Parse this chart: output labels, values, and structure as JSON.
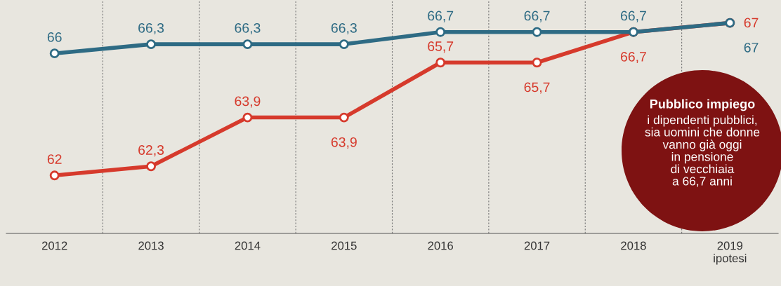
{
  "chart_data": {
    "type": "line",
    "categories": [
      "2012",
      "2013",
      "2014",
      "2015",
      "2016",
      "2017",
      "2018",
      "2019\nipotesi"
    ],
    "series": [
      {
        "color": "#d63a2c",
        "values": [
          62,
          62.3,
          63.9,
          63.9,
          65.7,
          65.7,
          66.7,
          67
        ],
        "value_labels": [
          "62",
          "62,3",
          "63,9",
          "63,9",
          "65,7",
          "65,7",
          "66,7",
          "67"
        ]
      },
      {
        "color": "#2e6b84",
        "values": [
          66,
          66.3,
          66.3,
          66.3,
          66.7,
          66.7,
          66.7,
          67
        ],
        "value_labels": [
          "66",
          "66,3",
          "66,3",
          "66,3",
          "66,7",
          "66,7",
          "66,7",
          "67"
        ]
      }
    ],
    "marker": "circle",
    "line_style": "solid",
    "grid": "x",
    "annotations": [
      "Pubblico impiego",
      "i dipendenti pubblici,\nsia uomini che donne\nvanno già oggi\nin pensione\ndi vecchiaia\na 66,7 anni"
    ]
  }
}
